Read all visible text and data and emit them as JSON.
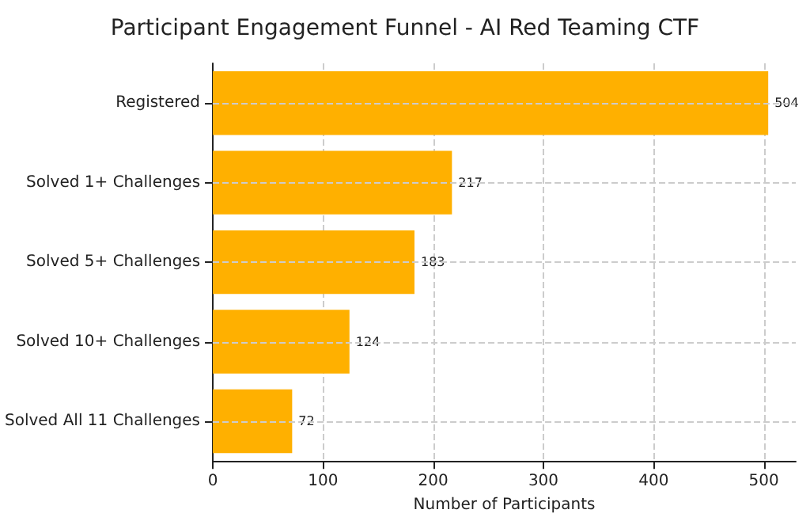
{
  "chart_data": {
    "type": "bar",
    "orientation": "horizontal",
    "title": "Participant Engagement Funnel - AI Red Teaming CTF",
    "xlabel": "Number of Participants",
    "categories": [
      "Registered",
      "Solved 1+ Challenges",
      "Solved 5+ Challenges",
      "Solved 10+ Challenges",
      "Solved All 11 Challenges"
    ],
    "values": [
      504,
      217,
      183,
      124,
      72
    ],
    "color": "#ffb000",
    "xlim": [
      0,
      529
    ],
    "xticks": [
      0,
      100,
      200,
      300,
      400,
      500
    ],
    "grid": true,
    "line_style": "dashed",
    "data_labels": true
  }
}
